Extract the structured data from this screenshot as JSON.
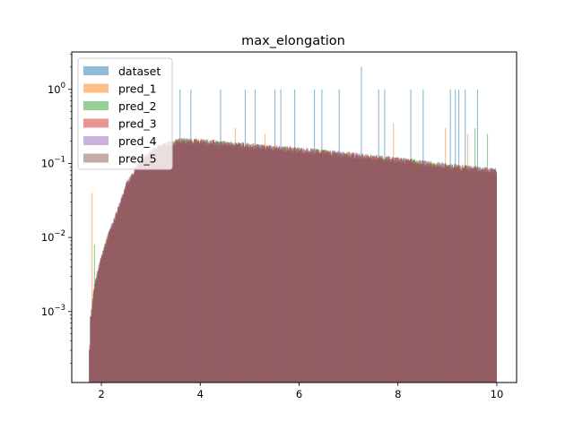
{
  "chart_data": {
    "type": "histogram",
    "title": "max_elongation",
    "xlabel": "",
    "ylabel": "",
    "x_scale": "linear",
    "y_scale": "log",
    "xlim": [
      1.4,
      10.4
    ],
    "ylim": [
      0.00011,
      3.2
    ],
    "x_ticks": [
      2,
      4,
      6,
      8,
      10
    ],
    "y_ticks": [
      0.001,
      0.01,
      0.1,
      1
    ],
    "y_tick_labels": [
      "10^-3",
      "10^-2",
      "10^-1",
      "10^0"
    ],
    "x_range": [
      1.75,
      10.0
    ],
    "bins": 400,
    "grid": false,
    "legend_position": "upper-left",
    "envelope": {
      "description": "approximate density profile shared by all series",
      "x": [
        1.75,
        1.78,
        1.85,
        1.95,
        2.1,
        2.3,
        2.5,
        2.8,
        3.2,
        3.6,
        4.0,
        4.5,
        5.0,
        6.0,
        7.0,
        8.0,
        9.0,
        10.0
      ],
      "y": [
        0.0002,
        0.0008,
        0.002,
        0.004,
        0.009,
        0.02,
        0.05,
        0.11,
        0.17,
        0.2,
        0.195,
        0.185,
        0.17,
        0.15,
        0.13,
        0.11,
        0.092,
        0.078
      ]
    },
    "series": [
      {
        "name": "dataset",
        "color": "#1f77b4",
        "spikes": [
          [
            3.58,
            1.0
          ],
          [
            3.8,
            1.0
          ],
          [
            4.4,
            1.0
          ],
          [
            4.9,
            1.0
          ],
          [
            5.1,
            1.0
          ],
          [
            5.5,
            1.0
          ],
          [
            5.62,
            1.0
          ],
          [
            5.9,
            1.0
          ],
          [
            6.3,
            1.0
          ],
          [
            6.45,
            1.0
          ],
          [
            6.8,
            1.0
          ],
          [
            7.25,
            2.0
          ],
          [
            7.6,
            1.0
          ],
          [
            7.72,
            1.0
          ],
          [
            8.25,
            1.0
          ],
          [
            8.5,
            1.0
          ],
          [
            9.05,
            1.0
          ],
          [
            9.15,
            1.0
          ],
          [
            9.22,
            1.0
          ],
          [
            9.35,
            1.0
          ],
          [
            9.6,
            1.0
          ]
        ]
      },
      {
        "name": "pred_1",
        "color": "#ff7f0e",
        "spikes": [
          [
            1.8,
            0.04
          ],
          [
            4.7,
            0.3
          ],
          [
            5.3,
            0.25
          ],
          [
            7.9,
            0.35
          ],
          [
            8.95,
            0.3
          ],
          [
            9.4,
            0.25
          ]
        ]
      },
      {
        "name": "pred_2",
        "color": "#2ca02c",
        "spikes": [
          [
            1.85,
            0.008
          ],
          [
            9.55,
            0.3
          ],
          [
            9.8,
            0.25
          ]
        ]
      },
      {
        "name": "pred_3",
        "color": "#d62728",
        "spikes": []
      },
      {
        "name": "pred_4",
        "color": "#9467bd",
        "spikes": []
      },
      {
        "name": "pred_5",
        "color": "#8c564b",
        "spikes": []
      }
    ]
  }
}
